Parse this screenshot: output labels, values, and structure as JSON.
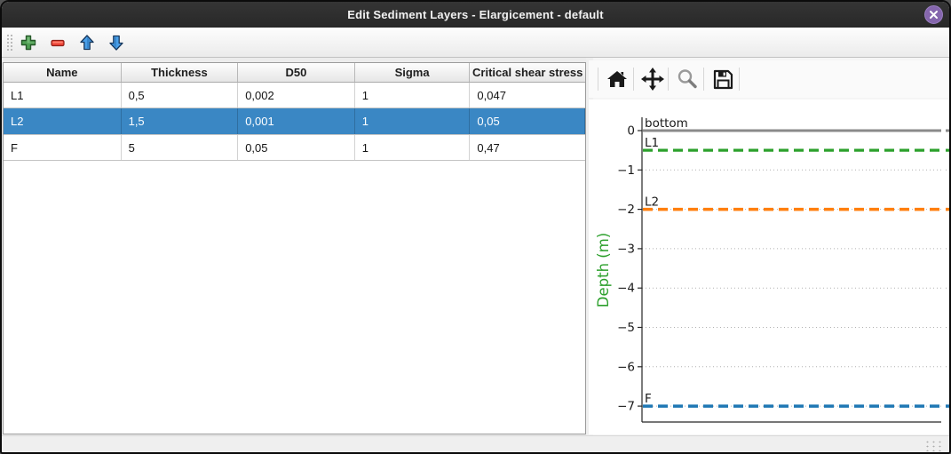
{
  "window": {
    "title": "Edit Sediment Layers - Elargicement - default"
  },
  "layer_toolbar": {
    "buttons": [
      {
        "name": "add-layer-button",
        "icon": "plus-icon",
        "color": "#4f9e53"
      },
      {
        "name": "remove-layer-button",
        "icon": "minus-icon",
        "color": "#ee4437"
      },
      {
        "name": "move-layer-up-button",
        "icon": "arrow-up-icon",
        "color": "#4a9fe8"
      },
      {
        "name": "move-layer-down-button",
        "icon": "arrow-down-icon",
        "color": "#4a9fe8"
      }
    ]
  },
  "table": {
    "columns": [
      "Name",
      "Thickness",
      "D50",
      "Sigma",
      "Critical shear stress"
    ],
    "rows": [
      {
        "cells": [
          "L1",
          "0,5",
          "0,002",
          "1",
          "0,047"
        ]
      },
      {
        "cells": [
          "L2",
          "1,5",
          "0,001",
          "1",
          "0,05"
        ]
      },
      {
        "cells": [
          "F",
          "5",
          "0,05",
          "1",
          "0,47"
        ]
      }
    ],
    "selected_row_index": 1,
    "selection_color": "#3a87c4"
  },
  "chart_toolbar": {
    "buttons": [
      {
        "name": "home-button",
        "icon": "home-icon"
      },
      {
        "name": "pan-button",
        "icon": "move-arrows-icon"
      },
      {
        "name": "zoom-button",
        "icon": "magnifier-icon"
      },
      {
        "name": "save-button",
        "icon": "floppy-disk-icon"
      }
    ]
  },
  "chart_data": {
    "type": "line",
    "title": "",
    "xlabel": "",
    "ylabel": "Depth (m)",
    "ylabel_color": "#2ca02c",
    "ylim": [
      0.35,
      -7.42
    ],
    "yticks": [
      0,
      -1,
      -2,
      -3,
      -4,
      -5,
      -6,
      -7
    ],
    "ytick_labels": [
      "0",
      "−1",
      "−2",
      "−3",
      "−4",
      "−5",
      "−6",
      "−7"
    ],
    "grid": true,
    "grid_color": "#b0b0b0",
    "series": [
      {
        "name": "bottom",
        "depth": 0,
        "color": "#8a8a8a",
        "style": "solid",
        "width": 3
      },
      {
        "name": "L1",
        "depth": -0.5,
        "color": "#2ca02c",
        "style": "dashed",
        "width": 3.2
      },
      {
        "name": "L2",
        "depth": -2,
        "color": "#ff7f0e",
        "style": "dashed",
        "width": 3.5
      },
      {
        "name": "F",
        "depth": -7,
        "color": "#1f77b4",
        "style": "dashed",
        "width": 3.5
      }
    ]
  }
}
